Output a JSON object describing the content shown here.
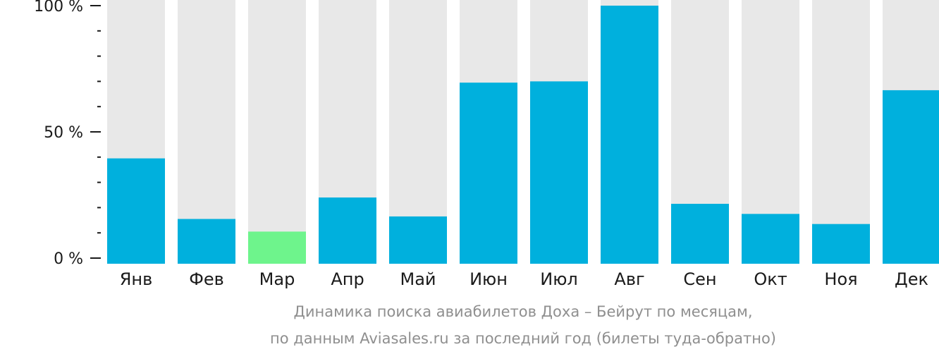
{
  "chart_data": {
    "type": "bar",
    "categories": [
      "Янв",
      "Фев",
      "Мар",
      "Апр",
      "Май",
      "Июн",
      "Июл",
      "Авг",
      "Сен",
      "Окт",
      "Ноя",
      "Дек"
    ],
    "values": [
      39.5,
      15.5,
      10.5,
      24,
      16.5,
      69.5,
      70,
      100,
      21.5,
      17.5,
      13.5,
      66.5
    ],
    "ylim": [
      0,
      100
    ],
    "yticks": [
      {
        "value": 0,
        "label": "0 %"
      },
      {
        "value": 50,
        "label": "50 %"
      },
      {
        "value": 100,
        "label": "100 %"
      }
    ],
    "minor_tick_step": 10,
    "highlight_index": 2,
    "colors": {
      "bar": "#00b0dd",
      "highlight": "#6ef48c",
      "background_track": "#e8e8e8",
      "axis": "#1a1a1a",
      "caption": "#8f8f8f"
    },
    "caption": {
      "line1": "Динамика поиска авиабилетов Доха – Бейрут по месяцам,",
      "line2": "по данным Aviasales.ru за последний год (билеты туда-обратно)"
    }
  }
}
